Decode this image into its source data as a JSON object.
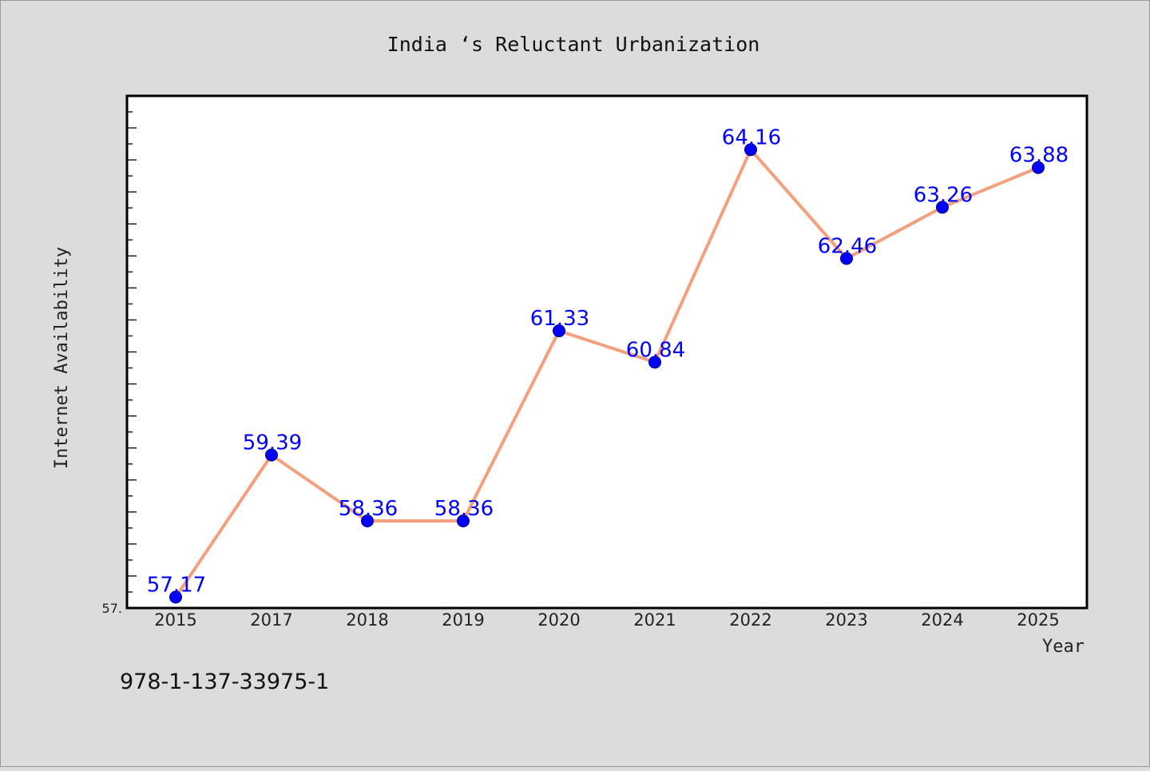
{
  "chart_data": {
    "type": "line",
    "title": "India ‘s Reluctant Urbanization",
    "xlabel": "Year",
    "ylabel": "Internet Availability",
    "categories": [
      "2015",
      "2017",
      "2018",
      "2019",
      "2020",
      "2021",
      "2022",
      "2023",
      "2024",
      "2025"
    ],
    "series": [
      {
        "values": [
          57.17,
          59.39,
          58.36,
          58.36,
          61.33,
          60.84,
          64.16,
          62.46,
          63.26,
          63.88
        ],
        "labels": [
          "57.17",
          "59.39",
          "58.36",
          "58.36",
          "61.33",
          "60.84",
          "64.16",
          "62.46",
          "63.26",
          "63.88"
        ]
      }
    ],
    "ylim": [
      57.0,
      65.0
    ],
    "y_tick_label": "57.",
    "line_color": "#f4a07e",
    "marker_color": "#0000ff",
    "label_color": "#0000ff",
    "grid": false,
    "background_color": "#dcdcdc",
    "plot_background_color": "#ffffff"
  },
  "footer": {
    "code": "978-1-137-33975-1"
  }
}
